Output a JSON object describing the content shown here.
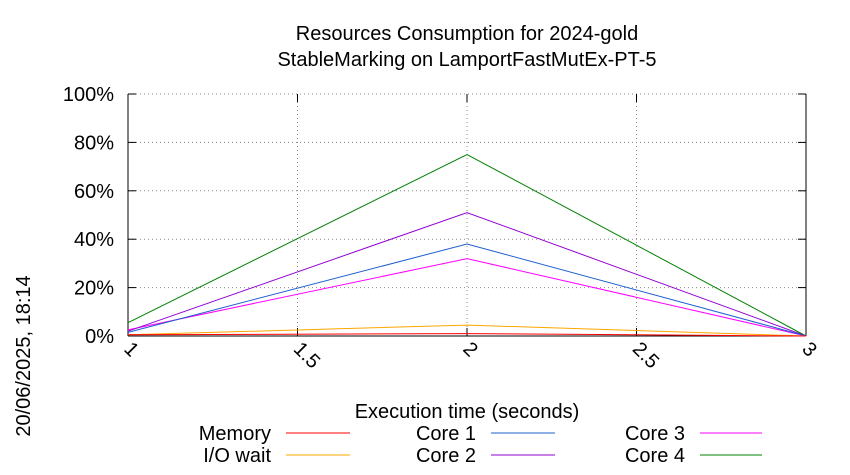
{
  "chart_data": {
    "type": "line",
    "title_line1": "Resources Consumption for 2024-gold",
    "title_line2": "StableMarking on LamportFastMutEx-PT-5",
    "xlabel": "Execution time (seconds)",
    "ylabel": "",
    "side_label": "20/06/2025, 18:14",
    "xlim": [
      1,
      3
    ],
    "ylim": [
      0,
      100
    ],
    "x_ticks": [
      1,
      1.5,
      2,
      2.5,
      3
    ],
    "x_tick_labels": [
      "1",
      "1.5",
      "2",
      "2.5",
      "3"
    ],
    "y_ticks": [
      0,
      20,
      40,
      60,
      80,
      100
    ],
    "y_tick_labels": [
      "0%",
      "20%",
      "40%",
      "60%",
      "80%",
      "100%"
    ],
    "grid": true,
    "legend_position": "bottom",
    "x": [
      1,
      2,
      3
    ],
    "series": [
      {
        "name": "Memory",
        "color": "#ff0000",
        "values": [
          0.5,
          1,
          0
        ]
      },
      {
        "name": "I/O wait",
        "color": "#ffa500",
        "values": [
          0.5,
          4.5,
          0
        ]
      },
      {
        "name": "Core 1",
        "color": "#1f5fcf",
        "values": [
          1.5,
          38,
          0
        ]
      },
      {
        "name": "Core 2",
        "color": "#9400d3",
        "values": [
          2,
          51,
          0
        ]
      },
      {
        "name": "Core 3",
        "color": "#ff00ff",
        "values": [
          2.5,
          32,
          0
        ]
      },
      {
        "name": "Core 4",
        "color": "#008000",
        "values": [
          5.5,
          75,
          0
        ]
      }
    ]
  }
}
